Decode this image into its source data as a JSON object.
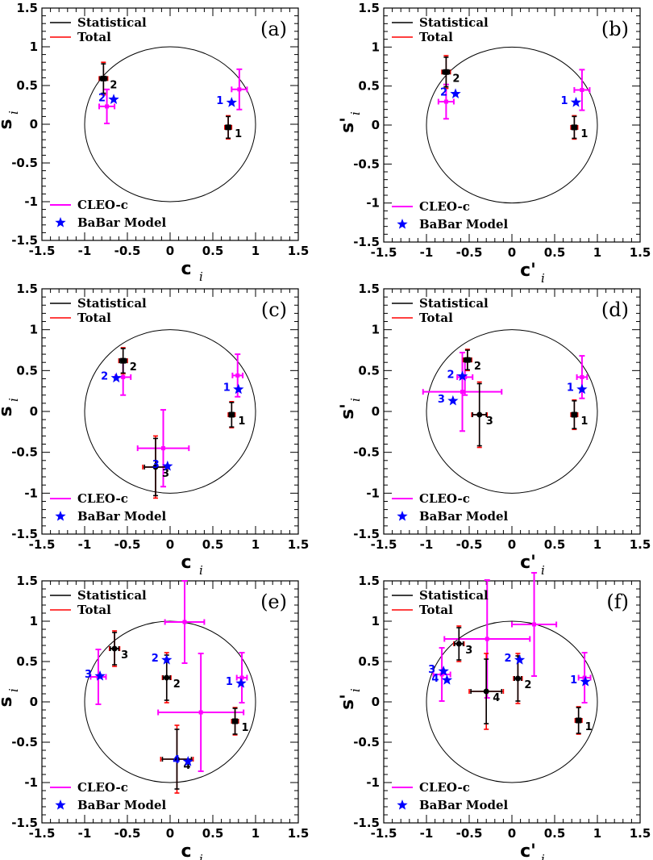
{
  "colors": {
    "statistical": "#000000",
    "total": "#ff0000",
    "cleo": "#ff00ff",
    "babar": "#0000ff",
    "circle": "#000000"
  },
  "legend": {
    "statistical": "Statistical",
    "total": "Total",
    "cleo": "CLEO-c",
    "babar": "BaBar Model"
  },
  "chart_data": [
    {
      "type": "scatter",
      "panel_label": "(a)",
      "xlabel": "c",
      "xlabel_sub": "i",
      "ylabel": "s",
      "ylabel_sub": "i",
      "xlim": [
        -1.5,
        1.5
      ],
      "ylim": [
        -1.5,
        1.5
      ],
      "x_ticks": [
        "-1.5",
        "-1",
        "-0.5",
        "0",
        "0.5",
        "1",
        "1.5"
      ],
      "y_ticks": [
        "-1.5",
        "-1",
        "-0.5",
        "0",
        "0.5",
        "1",
        "1.5"
      ],
      "grid": false,
      "unit_circle": true,
      "measurements": [
        {
          "label": "1",
          "x": 0.68,
          "y": -0.04,
          "xerr_stat": 0.03,
          "xerr_tot": 0.04,
          "yerr_stat": 0.14,
          "yerr_tot": 0.15,
          "marker": "square"
        },
        {
          "label": "2",
          "x": -0.78,
          "y": 0.59,
          "xerr_stat": 0.04,
          "xerr_tot": 0.05,
          "yerr_stat": 0.19,
          "yerr_tot": 0.21,
          "marker": "square"
        }
      ],
      "cleo": [
        {
          "x": 0.81,
          "y": 0.45,
          "xerr": 0.09,
          "yerr": 0.26
        },
        {
          "x": -0.74,
          "y": 0.23,
          "xerr": 0.09,
          "yerr": 0.22
        }
      ],
      "babar": [
        {
          "label": "1",
          "x": 0.72,
          "y": 0.28
        },
        {
          "label": "2",
          "x": -0.66,
          "y": 0.32
        }
      ]
    },
    {
      "type": "scatter",
      "panel_label": "(b)",
      "xlabel": "c'",
      "xlabel_sub": "i",
      "ylabel": "s'",
      "ylabel_sub": "i",
      "xlim": [
        -1.5,
        1.5
      ],
      "ylim": [
        -1.5,
        1.5
      ],
      "x_ticks": [
        "-1.5",
        "-1",
        "-0.5",
        "0",
        "0.5",
        "1",
        "1.5"
      ],
      "y_ticks": [
        "-1.5",
        "-1",
        "-0.5",
        "0",
        "0.5",
        "1",
        "1.5"
      ],
      "grid": false,
      "unit_circle": true,
      "measurements": [
        {
          "label": "1",
          "x": 0.73,
          "y": -0.03,
          "xerr_stat": 0.03,
          "xerr_tot": 0.04,
          "yerr_stat": 0.14,
          "yerr_tot": 0.15,
          "marker": "square"
        },
        {
          "label": "2",
          "x": -0.77,
          "y": 0.68,
          "xerr_stat": 0.04,
          "xerr_tot": 0.05,
          "yerr_stat": 0.19,
          "yerr_tot": 0.21,
          "marker": "square"
        }
      ],
      "cleo": [
        {
          "x": 0.82,
          "y": 0.45,
          "xerr": 0.09,
          "yerr": 0.26
        },
        {
          "x": -0.77,
          "y": 0.3,
          "xerr": 0.09,
          "yerr": 0.22
        }
      ],
      "babar": [
        {
          "label": "1",
          "x": 0.75,
          "y": 0.29
        },
        {
          "label": "2",
          "x": -0.66,
          "y": 0.4
        }
      ]
    },
    {
      "type": "scatter",
      "panel_label": "(c)",
      "xlabel": "c",
      "xlabel_sub": "i",
      "ylabel": "s",
      "ylabel_sub": "i",
      "xlim": [
        -1.5,
        1.5
      ],
      "ylim": [
        -1.5,
        1.5
      ],
      "x_ticks": [
        "-1.5",
        "-1",
        "-0.5",
        "0",
        "0.5",
        "1",
        "1.5"
      ],
      "y_ticks": [
        "-1.5",
        "-1",
        "-0.5",
        "0",
        "0.5",
        "1",
        "1.5"
      ],
      "grid": false,
      "unit_circle": true,
      "measurements": [
        {
          "label": "1",
          "x": 0.72,
          "y": -0.04,
          "xerr_stat": 0.03,
          "xerr_tot": 0.04,
          "yerr_stat": 0.15,
          "yerr_tot": 0.16,
          "marker": "square"
        },
        {
          "label": "2",
          "x": -0.55,
          "y": 0.62,
          "xerr_stat": 0.04,
          "xerr_tot": 0.05,
          "yerr_stat": 0.15,
          "yerr_tot": 0.16,
          "marker": "square"
        },
        {
          "label": "3",
          "x": -0.17,
          "y": -0.68,
          "xerr_stat": 0.13,
          "xerr_tot": 0.15,
          "yerr_stat": 0.35,
          "yerr_tot": 0.38,
          "marker": "circle"
        }
      ],
      "cleo": [
        {
          "x": 0.79,
          "y": 0.44,
          "xerr": 0.06,
          "yerr": 0.26
        },
        {
          "x": -0.55,
          "y": 0.42,
          "xerr": 0.09,
          "yerr": 0.22
        },
        {
          "x": -0.08,
          "y": -0.45,
          "xerr": 0.3,
          "yerr": 0.47
        }
      ],
      "babar": [
        {
          "label": "1",
          "x": 0.8,
          "y": 0.27
        },
        {
          "label": "2",
          "x": -0.63,
          "y": 0.41
        },
        {
          "label": "3",
          "x": -0.03,
          "y": -0.67
        }
      ]
    },
    {
      "type": "scatter",
      "panel_label": "(d)",
      "xlabel": "c'",
      "xlabel_sub": "i",
      "ylabel": "s'",
      "ylabel_sub": "i",
      "xlim": [
        -1.5,
        1.5
      ],
      "ylim": [
        -1.5,
        1.5
      ],
      "x_ticks": [
        "-1.5",
        "-1",
        "-0.5",
        "0",
        "0.5",
        "1",
        "1.5"
      ],
      "y_ticks": [
        "-1.5",
        "-1",
        "-0.5",
        "0",
        "0.5",
        "1",
        "1.5"
      ],
      "grid": false,
      "unit_circle": true,
      "measurements": [
        {
          "label": "1",
          "x": 0.73,
          "y": -0.04,
          "xerr_stat": 0.03,
          "xerr_tot": 0.04,
          "yerr_stat": 0.17,
          "yerr_tot": 0.18,
          "marker": "square"
        },
        {
          "label": "2",
          "x": -0.52,
          "y": 0.63,
          "xerr_stat": 0.04,
          "xerr_tot": 0.05,
          "yerr_stat": 0.12,
          "yerr_tot": 0.13,
          "marker": "square"
        },
        {
          "label": "3",
          "x": -0.38,
          "y": -0.04,
          "xerr_stat": 0.08,
          "xerr_tot": 0.09,
          "yerr_stat": 0.38,
          "yerr_tot": 0.4,
          "marker": "circle"
        }
      ],
      "cleo": [
        {
          "x": 0.82,
          "y": 0.42,
          "xerr": 0.06,
          "yerr": 0.26
        },
        {
          "x": -0.55,
          "y": 0.42,
          "xerr": 0.09,
          "yerr": 0.22
        },
        {
          "x": -0.58,
          "y": 0.24,
          "xerr": 0.46,
          "yerr": 0.48
        }
      ],
      "babar": [
        {
          "label": "1",
          "x": 0.82,
          "y": 0.27
        },
        {
          "label": "2",
          "x": -0.58,
          "y": 0.43
        },
        {
          "label": "3",
          "x": -0.69,
          "y": 0.13
        }
      ]
    },
    {
      "type": "scatter",
      "panel_label": "(e)",
      "xlabel": "c",
      "xlabel_sub": "i",
      "ylabel": "s",
      "ylabel_sub": "i",
      "xlim": [
        -1.5,
        1.5
      ],
      "ylim": [
        -1.5,
        1.5
      ],
      "x_ticks": [
        "-1.5",
        "-1",
        "-0.5",
        "0",
        "0.5",
        "1",
        "1.5"
      ],
      "y_ticks": [
        "-1.5",
        "-1",
        "-0.5",
        "0",
        "0.5",
        "1",
        "1.5"
      ],
      "grid": false,
      "unit_circle": true,
      "measurements": [
        {
          "label": "1",
          "x": 0.76,
          "y": -0.24,
          "xerr_stat": 0.03,
          "xerr_tot": 0.04,
          "yerr_stat": 0.16,
          "yerr_tot": 0.17,
          "marker": "square"
        },
        {
          "label": "2",
          "x": -0.04,
          "y": 0.3,
          "xerr_stat": 0.04,
          "xerr_tot": 0.05,
          "yerr_stat": 0.28,
          "yerr_tot": 0.31,
          "marker": "circle"
        },
        {
          "label": "3",
          "x": -0.65,
          "y": 0.66,
          "xerr_stat": 0.05,
          "xerr_tot": 0.06,
          "yerr_stat": 0.2,
          "yerr_tot": 0.22,
          "marker": "circle"
        },
        {
          "label": "4",
          "x": 0.08,
          "y": -0.71,
          "xerr_stat": 0.17,
          "xerr_tot": 0.19,
          "yerr_stat": 0.37,
          "yerr_tot": 0.42,
          "marker": "circle"
        }
      ],
      "cleo": [
        {
          "x": 0.84,
          "y": 0.3,
          "xerr": 0.06,
          "yerr": 0.31
        },
        {
          "x": 0.17,
          "y": 0.99,
          "xerr": 0.23,
          "yerr": 0.51
        },
        {
          "x": -0.84,
          "y": 0.31,
          "xerr": 0.09,
          "yerr": 0.34
        },
        {
          "x": 0.36,
          "y": -0.13,
          "xerr": 0.5,
          "yerr": 0.73
        }
      ],
      "babar": [
        {
          "label": "1",
          "x": 0.83,
          "y": 0.23
        },
        {
          "label": "2",
          "x": -0.04,
          "y": 0.52
        },
        {
          "label": "3",
          "x": -0.82,
          "y": 0.32
        },
        {
          "label": "4",
          "x": 0.21,
          "y": -0.74
        }
      ]
    },
    {
      "type": "scatter",
      "panel_label": "(f)",
      "xlabel": "c'",
      "xlabel_sub": "i",
      "ylabel": "s'",
      "ylabel_sub": "i",
      "xlim": [
        -1.5,
        1.5
      ],
      "ylim": [
        -1.5,
        1.5
      ],
      "x_ticks": [
        "-1.5",
        "-1",
        "-0.5",
        "0",
        "0.5",
        "1",
        "1.5"
      ],
      "y_ticks": [
        "-1.5",
        "-1",
        "-0.5",
        "0",
        "0.5",
        "1",
        "1.5"
      ],
      "grid": false,
      "unit_circle": true,
      "measurements": [
        {
          "label": "1",
          "x": 0.78,
          "y": -0.23,
          "xerr_stat": 0.03,
          "xerr_tot": 0.04,
          "yerr_stat": 0.16,
          "yerr_tot": 0.17,
          "marker": "square"
        },
        {
          "label": "2",
          "x": 0.07,
          "y": 0.29,
          "xerr_stat": 0.04,
          "xerr_tot": 0.05,
          "yerr_stat": 0.28,
          "yerr_tot": 0.31,
          "marker": "circle"
        },
        {
          "label": "3",
          "x": -0.62,
          "y": 0.72,
          "xerr_stat": 0.05,
          "xerr_tot": 0.06,
          "yerr_stat": 0.2,
          "yerr_tot": 0.22,
          "marker": "circle"
        },
        {
          "label": "4",
          "x": -0.3,
          "y": 0.13,
          "xerr_stat": 0.18,
          "xerr_tot": 0.2,
          "yerr_stat": 0.4,
          "yerr_tot": 0.47,
          "marker": "circle"
        }
      ],
      "cleo": [
        {
          "x": 0.85,
          "y": 0.3,
          "xerr": 0.07,
          "yerr": 0.31
        },
        {
          "x": 0.26,
          "y": 0.96,
          "xerr": 0.26,
          "yerr": 0.64
        },
        {
          "x": -0.82,
          "y": 0.34,
          "xerr": 0.1,
          "yerr": 0.33
        },
        {
          "x": -0.29,
          "y": 0.78,
          "xerr": 0.5,
          "yerr": 0.73
        }
      ],
      "babar": [
        {
          "label": "1",
          "x": 0.86,
          "y": 0.25
        },
        {
          "label": "2",
          "x": 0.09,
          "y": 0.52
        },
        {
          "label": "3",
          "x": -0.8,
          "y": 0.38
        },
        {
          "label": "4",
          "x": -0.76,
          "y": 0.27
        }
      ]
    }
  ]
}
